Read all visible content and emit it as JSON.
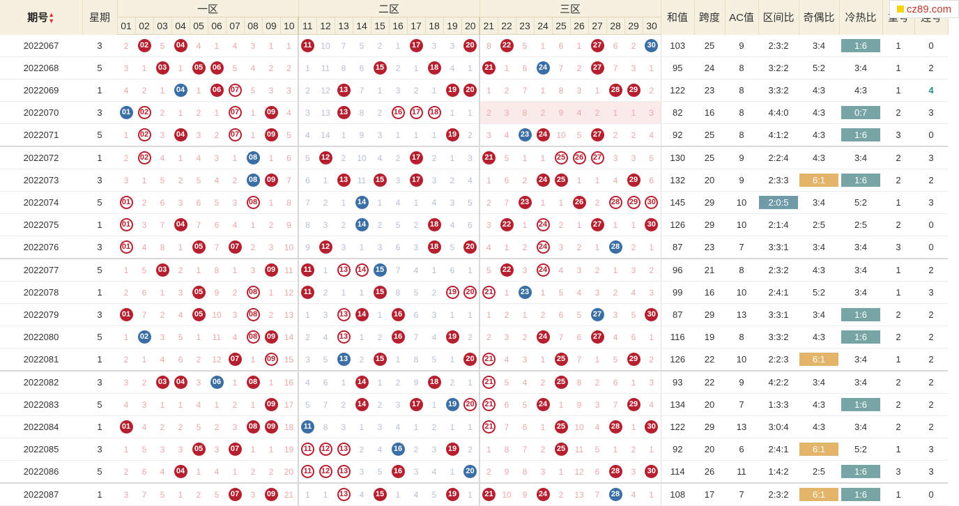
{
  "header": {
    "issue": "期号",
    "week": "星期",
    "zones": [
      "一区",
      "二区",
      "三区"
    ],
    "stats": [
      "和值",
      "跨度",
      "AC值",
      "区间比",
      "奇偶比",
      "冷热比",
      "重号",
      "连号"
    ],
    "numbers": [
      "01",
      "02",
      "03",
      "04",
      "05",
      "06",
      "07",
      "08",
      "09",
      "10",
      "11",
      "12",
      "13",
      "14",
      "15",
      "16",
      "17",
      "18",
      "19",
      "20",
      "21",
      "22",
      "23",
      "24",
      "25",
      "26",
      "27",
      "28",
      "29",
      "30"
    ]
  },
  "logo": "cz89.com",
  "colors": {
    "red_ball": "#b51f2e",
    "blue_ball": "#3a6ea5",
    "teal_tag": "#77a4a4",
    "gold_tag": "#e3b46a"
  },
  "rows": [
    {
      "issue": "2022067",
      "week": "3",
      "cells": [
        "2",
        "R02",
        "5",
        "R04",
        "4",
        "1",
        "4",
        "3",
        "1",
        "1",
        "R11",
        "10",
        "7",
        "5",
        "2",
        "1",
        "R17",
        "3",
        "3",
        "R20",
        "8",
        "R22",
        "5",
        "1",
        "6",
        "1",
        "R27",
        "6",
        "2",
        "B30"
      ],
      "sum": "103",
      "span": "25",
      "ac": "9",
      "zone": "2:3:2",
      "oe": "3:4",
      "ch": "1:6",
      "ch_style": "teal",
      "rep": "1",
      "con": "0"
    },
    {
      "issue": "2022068",
      "week": "5",
      "cells": [
        "3",
        "1",
        "R03",
        "1",
        "R05",
        "R06",
        "5",
        "4",
        "2",
        "2",
        "1",
        "11",
        "8",
        "6",
        "R15",
        "2",
        "1",
        "R18",
        "4",
        "1",
        "R21",
        "1",
        "6",
        "B24",
        "7",
        "2",
        "R27",
        "7",
        "3",
        "1"
      ],
      "sum": "95",
      "span": "24",
      "ac": "8",
      "zone": "3:2:2",
      "oe": "5:2",
      "ch": "3:4",
      "ch_style": "",
      "rep": "1",
      "con": "2"
    },
    {
      "issue": "2022069",
      "week": "1",
      "cells": [
        "4",
        "2",
        "1",
        "B04",
        "1",
        "R06",
        "O07",
        "5",
        "3",
        "3",
        "2",
        "12",
        "R13",
        "7",
        "1",
        "3",
        "2",
        "1",
        "R19",
        "R20",
        "1",
        "2",
        "7",
        "1",
        "8",
        "3",
        "1",
        "R28",
        "R29",
        "2"
      ],
      "sum": "122",
      "span": "23",
      "ac": "8",
      "zone": "3:3:2",
      "oe": "4:3",
      "ch": "4:3",
      "ch_style": "",
      "rep": "1",
      "con": "4",
      "con_style": "teal"
    },
    {
      "issue": "2022070",
      "week": "3",
      "cells": [
        "B01",
        "O02",
        "2",
        "1",
        "2",
        "1",
        "O07",
        "1",
        "R09",
        "4",
        "3",
        "13",
        "R13",
        "8",
        "2",
        "O16",
        "O17",
        "O18",
        "1",
        "1",
        "2",
        "3",
        "8",
        "2",
        "9",
        "4",
        "2",
        "1",
        "1",
        "3"
      ],
      "sum": "82",
      "span": "16",
      "ac": "8",
      "zone": "4:4:0",
      "oe": "4:3",
      "ch": "0:7",
      "ch_style": "teal",
      "rep": "2",
      "con": "3",
      "hl3": true
    },
    {
      "issue": "2022071",
      "week": "5",
      "cells": [
        "1",
        "O02",
        "3",
        "R04",
        "3",
        "2",
        "O07",
        "1",
        "R09",
        "5",
        "4",
        "14",
        "1",
        "9",
        "3",
        "1",
        "1",
        "1",
        "R19",
        "2",
        "3",
        "4",
        "B23",
        "R24",
        "10",
        "5",
        "R27",
        "2",
        "2",
        "4"
      ],
      "sum": "92",
      "span": "25",
      "ac": "8",
      "zone": "4:1:2",
      "oe": "4:3",
      "ch": "1:6",
      "ch_style": "teal",
      "rep": "3",
      "con": "0",
      "blk": true
    },
    {
      "issue": "2022072",
      "week": "1",
      "cells": [
        "2",
        "O02",
        "4",
        "1",
        "4",
        "3",
        "1",
        "B08",
        "1",
        "6",
        "5",
        "R12",
        "2",
        "10",
        "4",
        "2",
        "R17",
        "2",
        "1",
        "3",
        "R21",
        "5",
        "1",
        "1",
        "O25",
        "O26",
        "O27",
        "3",
        "3",
        "5"
      ],
      "sum": "130",
      "span": "25",
      "ac": "9",
      "zone": "2:2:4",
      "oe": "4:3",
      "ch": "3:4",
      "ch_style": "",
      "rep": "2",
      "con": "3"
    },
    {
      "issue": "2022073",
      "week": "3",
      "cells": [
        "3",
        "1",
        "5",
        "2",
        "5",
        "4",
        "2",
        "B08",
        "R09",
        "7",
        "6",
        "1",
        "R13",
        "11",
        "R15",
        "3",
        "R17",
        "3",
        "2",
        "4",
        "1",
        "6",
        "2",
        "R24",
        "R25",
        "1",
        "1",
        "4",
        "R29",
        "6"
      ],
      "sum": "132",
      "span": "20",
      "ac": "9",
      "zone": "2:3:3",
      "oe": "6:1",
      "oe_style": "gold",
      "ch": "1:6",
      "ch_style": "teal",
      "rep": "2",
      "con": "2"
    },
    {
      "issue": "2022074",
      "week": "5",
      "cells": [
        "O01",
        "2",
        "6",
        "3",
        "6",
        "5",
        "3",
        "O08",
        "1",
        "8",
        "7",
        "2",
        "1",
        "B14",
        "1",
        "4",
        "1",
        "4",
        "3",
        "5",
        "2",
        "7",
        "R23",
        "1",
        "1",
        "R26",
        "2",
        "O28",
        "O29",
        "O30"
      ],
      "sum": "145",
      "span": "29",
      "ac": "10",
      "zone": "2:0:5",
      "zone_style": "steel",
      "oe": "3:4",
      "ch": "5:2",
      "ch_style": "",
      "rep": "1",
      "con": "3"
    },
    {
      "issue": "2022075",
      "week": "1",
      "cells": [
        "O01",
        "3",
        "7",
        "R04",
        "7",
        "6",
        "4",
        "1",
        "2",
        "9",
        "8",
        "3",
        "2",
        "B14",
        "2",
        "5",
        "2",
        "R18",
        "4",
        "6",
        "3",
        "R22",
        "1",
        "O24",
        "2",
        "1",
        "R27",
        "1",
        "1",
        "R30"
      ],
      "sum": "126",
      "span": "29",
      "ac": "10",
      "zone": "2:1:4",
      "oe": "2:5",
      "ch": "2:5",
      "ch_style": "",
      "rep": "2",
      "con": "0"
    },
    {
      "issue": "2022076",
      "week": "3",
      "cells": [
        "O01",
        "4",
        "8",
        "1",
        "R05",
        "7",
        "R07",
        "2",
        "3",
        "10",
        "9",
        "R12",
        "3",
        "1",
        "3",
        "6",
        "3",
        "R18",
        "5",
        "R20",
        "4",
        "1",
        "2",
        "O24",
        "3",
        "2",
        "1",
        "B28",
        "2",
        "1"
      ],
      "sum": "87",
      "span": "23",
      "ac": "7",
      "zone": "3:3:1",
      "oe": "3:4",
      "ch": "3:4",
      "ch_style": "",
      "rep": "3",
      "con": "0",
      "blk": true
    },
    {
      "issue": "2022077",
      "week": "5",
      "cells": [
        "1",
        "5",
        "R03",
        "2",
        "1",
        "8",
        "1",
        "3",
        "R09",
        "11",
        "R11",
        "1",
        "O13",
        "O14",
        "B15",
        "7",
        "4",
        "1",
        "6",
        "1",
        "5",
        "R22",
        "3",
        "O24",
        "4",
        "3",
        "2",
        "1",
        "3",
        "2"
      ],
      "sum": "96",
      "span": "21",
      "ac": "8",
      "zone": "2:3:2",
      "oe": "4:3",
      "ch": "3:4",
      "ch_style": "",
      "rep": "1",
      "con": "2"
    },
    {
      "issue": "2022078",
      "week": "1",
      "cells": [
        "2",
        "6",
        "1",
        "3",
        "R05",
        "9",
        "2",
        "O08",
        "1",
        "12",
        "R11",
        "2",
        "1",
        "1",
        "R15",
        "8",
        "5",
        "2",
        "O19",
        "O20",
        "O21",
        "1",
        "B23",
        "1",
        "5",
        "4",
        "3",
        "2",
        "4",
        "3"
      ],
      "sum": "99",
      "span": "16",
      "ac": "10",
      "zone": "2:4:1",
      "oe": "5:2",
      "ch": "3:4",
      "ch_style": "",
      "rep": "1",
      "con": "3"
    },
    {
      "issue": "2022079",
      "week": "3",
      "cells": [
        "R01",
        "7",
        "2",
        "4",
        "R05",
        "10",
        "3",
        "O08",
        "2",
        "13",
        "1",
        "3",
        "O13",
        "R14",
        "1",
        "R16",
        "6",
        "3",
        "1",
        "1",
        "1",
        "2",
        "1",
        "2",
        "6",
        "5",
        "B27",
        "3",
        "5",
        "R30"
      ],
      "sum": "87",
      "span": "29",
      "ac": "13",
      "zone": "3:3:1",
      "oe": "3:4",
      "ch": "1:6",
      "ch_style": "teal",
      "rep": "2",
      "con": "2"
    },
    {
      "issue": "2022080",
      "week": "5",
      "cells": [
        "1",
        "B02",
        "3",
        "5",
        "1",
        "11",
        "4",
        "O08",
        "R09",
        "14",
        "2",
        "4",
        "O13",
        "1",
        "2",
        "R16",
        "7",
        "4",
        "R19",
        "2",
        "2",
        "3",
        "2",
        "R24",
        "7",
        "6",
        "R27",
        "4",
        "6",
        "1"
      ],
      "sum": "116",
      "span": "19",
      "ac": "8",
      "zone": "3:3:2",
      "oe": "4:3",
      "ch": "1:6",
      "ch_style": "teal",
      "rep": "2",
      "con": "2"
    },
    {
      "issue": "2022081",
      "week": "1",
      "cells": [
        "2",
        "1",
        "4",
        "6",
        "2",
        "12",
        "R07",
        "1",
        "O09",
        "15",
        "3",
        "5",
        "B13",
        "2",
        "R15",
        "1",
        "8",
        "5",
        "1",
        "R20",
        "O21",
        "4",
        "3",
        "1",
        "R25",
        "7",
        "1",
        "5",
        "R29",
        "2"
      ],
      "sum": "126",
      "span": "22",
      "ac": "10",
      "zone": "2:2:3",
      "oe": "6:1",
      "oe_style": "gold",
      "ch": "3:4",
      "ch_style": "",
      "rep": "1",
      "con": "2",
      "blk": true
    },
    {
      "issue": "2022082",
      "week": "3",
      "cells": [
        "3",
        "2",
        "R03",
        "R04",
        "3",
        "B06",
        "1",
        "R08",
        "1",
        "16",
        "4",
        "6",
        "1",
        "R14",
        "1",
        "2",
        "9",
        "R18",
        "2",
        "1",
        "O21",
        "5",
        "4",
        "2",
        "R25",
        "8",
        "2",
        "6",
        "1",
        "3"
      ],
      "sum": "93",
      "span": "22",
      "ac": "9",
      "zone": "4:2:2",
      "oe": "3:4",
      "ch": "3:4",
      "ch_style": "",
      "rep": "2",
      "con": "2"
    },
    {
      "issue": "2022083",
      "week": "5",
      "cells": [
        "4",
        "3",
        "1",
        "1",
        "4",
        "1",
        "2",
        "1",
        "R09",
        "17",
        "5",
        "7",
        "2",
        "R14",
        "2",
        "3",
        "R17",
        "1",
        "B19",
        "O20",
        "O21",
        "6",
        "5",
        "R24",
        "1",
        "9",
        "3",
        "7",
        "R29",
        "4"
      ],
      "sum": "134",
      "span": "20",
      "ac": "7",
      "zone": "1:3:3",
      "oe": "4:3",
      "ch": "1:6",
      "ch_style": "teal",
      "rep": "2",
      "con": "2"
    },
    {
      "issue": "2022084",
      "week": "1",
      "cells": [
        "R01",
        "4",
        "2",
        "2",
        "5",
        "2",
        "3",
        "R08",
        "R09",
        "18",
        "B11",
        "8",
        "3",
        "1",
        "3",
        "4",
        "1",
        "2",
        "1",
        "1",
        "O21",
        "7",
        "6",
        "1",
        "R25",
        "10",
        "4",
        "R28",
        "1",
        "R30"
      ],
      "sum": "122",
      "span": "29",
      "ac": "13",
      "zone": "3:0:4",
      "oe": "4:3",
      "ch": "3:4",
      "ch_style": "",
      "rep": "2",
      "con": "2"
    },
    {
      "issue": "2022085",
      "week": "3",
      "cells": [
        "1",
        "5",
        "3",
        "3",
        "R05",
        "3",
        "R07",
        "1",
        "1",
        "19",
        "O11",
        "O12",
        "O13",
        "2",
        "4",
        "B16",
        "2",
        "3",
        "R19",
        "2",
        "1",
        "8",
        "7",
        "2",
        "R25",
        "11",
        "5",
        "1",
        "2",
        "1"
      ],
      "sum": "92",
      "span": "20",
      "ac": "6",
      "zone": "2:4:1",
      "oe": "6:1",
      "oe_style": "gold",
      "ch": "5:2",
      "ch_style": "",
      "rep": "1",
      "con": "3"
    },
    {
      "issue": "2022086",
      "week": "5",
      "cells": [
        "2",
        "6",
        "4",
        "R04",
        "1",
        "4",
        "1",
        "2",
        "2",
        "20",
        "O11",
        "O12",
        "O13",
        "3",
        "5",
        "R16",
        "3",
        "4",
        "1",
        "B20",
        "2",
        "9",
        "8",
        "3",
        "1",
        "12",
        "6",
        "R28",
        "3",
        "R30"
      ],
      "sum": "114",
      "span": "26",
      "ac": "11",
      "zone": "1:4:2",
      "oe": "2:5",
      "ch": "1:6",
      "ch_style": "teal",
      "rep": "3",
      "con": "3",
      "blk": true
    },
    {
      "issue": "2022087",
      "week": "1",
      "cells": [
        "3",
        "7",
        "5",
        "1",
        "2",
        "5",
        "R07",
        "3",
        "R09",
        "21",
        "1",
        "1",
        "O13",
        "4",
        "R15",
        "1",
        "4",
        "5",
        "R19",
        "1",
        "R21",
        "10",
        "9",
        "R24",
        "2",
        "13",
        "7",
        "B28",
        "4",
        "1"
      ],
      "sum": "108",
      "span": "17",
      "ac": "7",
      "zone": "2:3:2",
      "oe": "6:1",
      "oe_style": "gold",
      "ch": "1:6",
      "ch_style": "teal",
      "rep": "1",
      "con": "0"
    }
  ]
}
